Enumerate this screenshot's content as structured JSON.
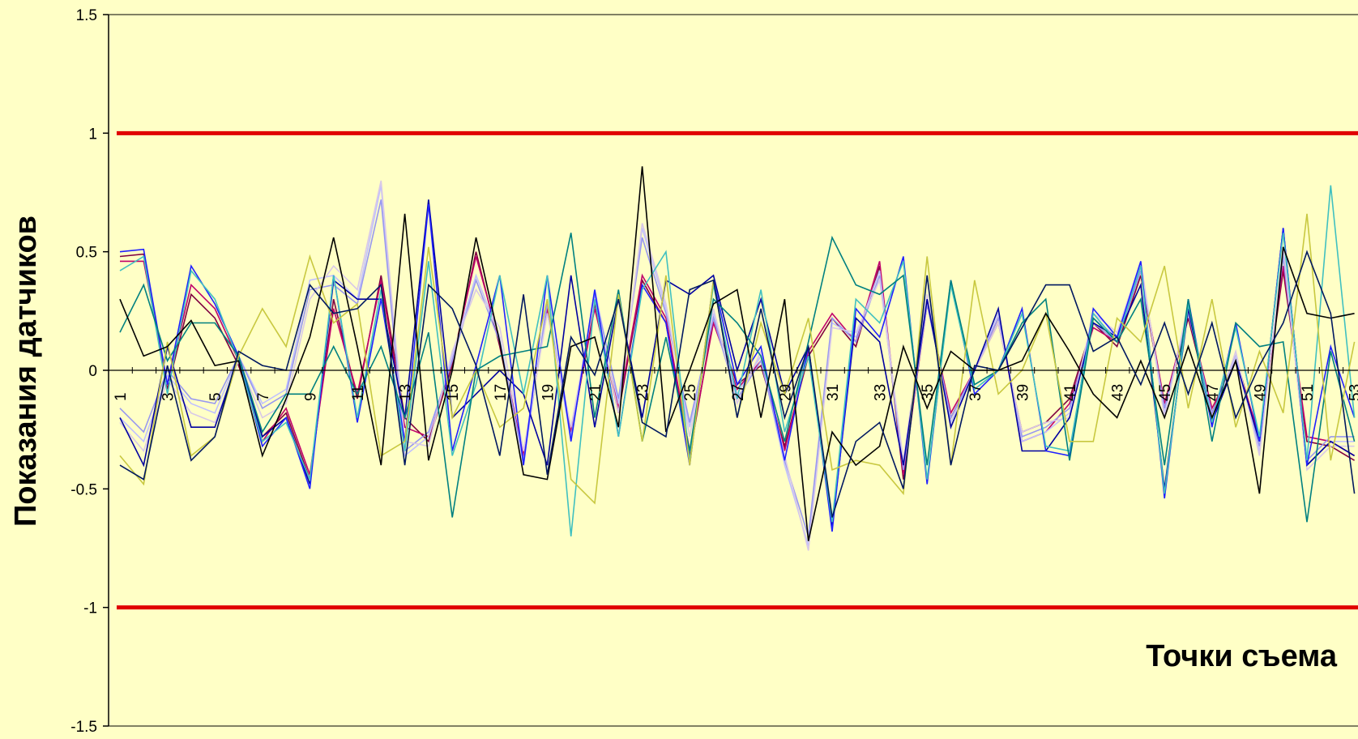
{
  "chart_data": {
    "type": "line",
    "title": "",
    "xlabel": "Точки съема",
    "ylabel": "Показания  датчиков",
    "ylim": [
      -1.5,
      1.5
    ],
    "yticks": [
      "1.5",
      "1",
      "0.5",
      "0",
      "-0.5",
      "-1",
      "-1.5"
    ],
    "xlim": [
      1,
      54
    ],
    "xticks": [
      "1",
      "3",
      "5",
      "7",
      "9",
      "11",
      "13",
      "15",
      "17",
      "19",
      "21",
      "23",
      "25",
      "27",
      "29",
      "31",
      "33",
      "35",
      "37",
      "39",
      "41",
      "43",
      "45",
      "47",
      "49",
      "51",
      "53"
    ],
    "legend": "none",
    "grid": false,
    "reference_lines": [
      {
        "y": 1,
        "color": "#e00000"
      },
      {
        "y": -1,
        "color": "#e00000"
      }
    ],
    "series": [
      {
        "color": "#800040",
        "values": [
          0.48,
          0.49,
          -0.08,
          0.32,
          0.22,
          0.02,
          -0.28,
          -0.18,
          -0.46,
          0.3,
          -0.12,
          0.4,
          -0.2,
          -0.3,
          0.02,
          0.5,
          0.1,
          -0.38,
          0.28,
          -0.28,
          0.28,
          -0.18,
          0.38,
          0.2,
          -0.36,
          0.22,
          -0.06,
          0.02,
          -0.32,
          0.06,
          0.22,
          0.1,
          0.44,
          -0.46,
          0.3,
          -0.2,
          0.0,
          0.2,
          -0.26,
          -0.22,
          -0.12,
          0.2,
          0.1,
          0.4,
          -0.16,
          0.22,
          -0.18,
          0.06,
          -0.3,
          0.42,
          -0.3,
          -0.32,
          -0.38
        ]
      },
      {
        "color": "#c0006a",
        "values": [
          0.46,
          0.46,
          -0.06,
          0.36,
          0.26,
          0.04,
          -0.3,
          -0.16,
          -0.44,
          0.26,
          -0.1,
          0.38,
          -0.24,
          -0.28,
          0.04,
          0.48,
          0.12,
          -0.36,
          0.26,
          -0.26,
          0.26,
          -0.16,
          0.4,
          0.22,
          -0.34,
          0.2,
          -0.08,
          0.04,
          -0.34,
          0.08,
          0.24,
          0.12,
          0.46,
          -0.44,
          0.28,
          -0.18,
          0.0,
          0.22,
          -0.3,
          -0.26,
          -0.14,
          0.18,
          0.12,
          0.42,
          -0.14,
          0.24,
          -0.16,
          0.04,
          -0.28,
          0.44,
          -0.28,
          -0.3,
          -0.36
        ]
      },
      {
        "color": "#c0c0ff",
        "values": [
          -0.2,
          -0.3,
          -0.02,
          -0.14,
          -0.18,
          0.06,
          -0.14,
          -0.08,
          0.38,
          0.4,
          0.3,
          0.78,
          -0.36,
          -0.28,
          0.06,
          0.4,
          0.14,
          -0.4,
          0.3,
          -0.3,
          0.34,
          -0.14,
          0.6,
          0.26,
          -0.24,
          0.24,
          -0.1,
          0.06,
          -0.4,
          -0.74,
          0.2,
          0.14,
          0.42,
          -0.4,
          0.3,
          -0.22,
          0.0,
          0.24,
          -0.3,
          -0.26,
          -0.18,
          0.22,
          0.14,
          0.44,
          -0.18,
          0.26,
          -0.2,
          0.06,
          -0.34,
          0.5,
          -0.4,
          -0.3,
          -0.3
        ]
      },
      {
        "color": "#9898f0",
        "values": [
          -0.16,
          -0.26,
          0.0,
          -0.12,
          -0.14,
          0.06,
          -0.16,
          -0.1,
          0.34,
          0.36,
          0.28,
          0.72,
          -0.34,
          -0.26,
          0.04,
          0.38,
          0.12,
          -0.38,
          0.28,
          -0.28,
          0.32,
          -0.12,
          0.56,
          0.24,
          -0.22,
          0.22,
          -0.12,
          0.04,
          -0.38,
          -0.7,
          0.22,
          0.12,
          0.4,
          -0.42,
          0.28,
          -0.2,
          0.0,
          0.22,
          -0.28,
          -0.24,
          -0.16,
          0.2,
          0.12,
          0.42,
          -0.16,
          0.24,
          -0.18,
          0.04,
          -0.32,
          0.48,
          -0.38,
          -0.28,
          -0.28
        ]
      },
      {
        "color": "#d8c8e8",
        "values": [
          -0.22,
          -0.34,
          -0.04,
          -0.18,
          -0.22,
          0.04,
          -0.2,
          -0.14,
          0.3,
          0.44,
          0.34,
          0.8,
          -0.3,
          -0.32,
          0.08,
          0.34,
          0.18,
          -0.34,
          0.24,
          -0.24,
          0.3,
          -0.18,
          0.62,
          0.28,
          -0.28,
          0.26,
          -0.14,
          0.08,
          -0.36,
          -0.76,
          0.18,
          0.16,
          0.38,
          -0.38,
          0.32,
          -0.24,
          0.0,
          0.2,
          -0.26,
          -0.22,
          -0.2,
          0.24,
          0.16,
          0.46,
          -0.2,
          0.28,
          -0.22,
          0.08,
          -0.36,
          0.52,
          -0.42,
          -0.32,
          -0.32
        ]
      },
      {
        "color": "#0000a0",
        "values": [
          -0.2,
          -0.4,
          0.1,
          -0.24,
          -0.24,
          0.06,
          -0.28,
          -0.2,
          -0.48,
          0.38,
          0.3,
          0.3,
          -0.2,
          0.72,
          -0.2,
          -0.1,
          0.0,
          -0.1,
          -0.4,
          0.4,
          -0.24,
          0.3,
          -0.2,
          0.38,
          0.32,
          0.4,
          0.0,
          0.3,
          -0.1,
          0.1,
          -0.66,
          0.22,
          0.12,
          -0.4,
          0.3,
          -0.24,
          0.0,
          0.26,
          -0.34,
          -0.34,
          -0.2,
          0.2,
          0.14,
          0.36,
          -0.5,
          0.26,
          -0.22,
          0.04,
          -0.3,
          0.6,
          -0.4,
          -0.3,
          -0.36
        ]
      },
      {
        "color": "#2020ff",
        "values": [
          0.5,
          0.51,
          -0.06,
          0.44,
          0.28,
          0.06,
          -0.32,
          -0.2,
          -0.5,
          0.4,
          -0.22,
          0.3,
          -0.3,
          0.7,
          -0.34,
          0.02,
          0.4,
          -0.4,
          0.4,
          -0.3,
          0.34,
          -0.28,
          0.36,
          0.2,
          -0.4,
          0.38,
          -0.06,
          0.1,
          -0.38,
          0.1,
          -0.68,
          0.26,
          0.14,
          0.48,
          -0.48,
          0.38,
          -0.1,
          0.0,
          0.26,
          -0.34,
          -0.36,
          0.26,
          0.14,
          0.46,
          -0.54,
          0.3,
          -0.24,
          0.2,
          -0.3,
          0.6,
          -0.4,
          0.1,
          -0.2
        ]
      },
      {
        "color": "#40c0c0",
        "values": [
          0.42,
          0.48,
          -0.1,
          0.42,
          0.3,
          0.04,
          -0.3,
          -0.22,
          -0.46,
          0.4,
          -0.2,
          0.34,
          -0.34,
          0.46,
          -0.36,
          -0.06,
          0.4,
          -0.1,
          0.4,
          -0.7,
          0.3,
          -0.28,
          0.34,
          0.5,
          -0.38,
          0.36,
          -0.12,
          0.34,
          -0.26,
          0.06,
          -0.64,
          0.3,
          0.2,
          0.46,
          -0.46,
          0.36,
          -0.08,
          0.0,
          0.24,
          -0.32,
          -0.34,
          0.24,
          0.12,
          0.44,
          -0.52,
          0.28,
          -0.22,
          0.18,
          -0.28,
          0.58,
          -0.38,
          0.78,
          -0.2
        ]
      },
      {
        "color": "#008080",
        "values": [
          0.16,
          0.36,
          0.04,
          0.2,
          0.2,
          0.06,
          -0.26,
          -0.1,
          -0.1,
          0.1,
          -0.1,
          0.1,
          -0.2,
          0.16,
          -0.62,
          0.0,
          0.06,
          0.08,
          0.1,
          0.58,
          -0.2,
          0.34,
          -0.3,
          0.14,
          -0.34,
          0.3,
          0.2,
          0.06,
          -0.3,
          0.12,
          0.56,
          0.36,
          0.32,
          0.4,
          -0.4,
          0.38,
          -0.06,
          0.0,
          0.2,
          0.3,
          -0.38,
          0.22,
          0.12,
          0.3,
          -0.4,
          0.3,
          -0.3,
          0.2,
          0.1,
          0.12,
          -0.64,
          0.08,
          -0.3
        ]
      },
      {
        "color": "#c8c840",
        "values": [
          -0.36,
          -0.48,
          0.12,
          -0.36,
          -0.28,
          0.06,
          0.26,
          0.1,
          0.48,
          0.2,
          0.28,
          -0.36,
          -0.3,
          0.52,
          -0.2,
          0.0,
          -0.24,
          -0.16,
          0.3,
          -0.46,
          -0.56,
          0.32,
          -0.3,
          0.4,
          -0.4,
          0.38,
          -0.2,
          0.2,
          -0.1,
          0.22,
          -0.42,
          -0.38,
          -0.4,
          -0.52,
          0.48,
          -0.4,
          0.38,
          -0.1,
          0.0,
          0.24,
          -0.3,
          -0.3,
          0.22,
          0.12,
          0.44,
          -0.16,
          0.3,
          -0.24,
          0.08,
          -0.18,
          0.66,
          -0.38,
          0.12
        ]
      },
      {
        "color": "#000000",
        "values": [
          0.3,
          0.06,
          0.1,
          0.21,
          0.02,
          0.04,
          -0.36,
          -0.12,
          0.14,
          0.56,
          0.1,
          -0.4,
          0.66,
          -0.38,
          0.0,
          0.56,
          0.12,
          -0.44,
          -0.46,
          0.1,
          0.14,
          -0.24,
          0.86,
          -0.26,
          0.0,
          0.28,
          0.34,
          -0.2,
          0.3,
          -0.72,
          -0.26,
          -0.4,
          -0.32,
          0.1,
          -0.16,
          0.08,
          0.0,
          0.0,
          0.04,
          0.24,
          0.08,
          -0.1,
          -0.2,
          0.04,
          -0.2,
          0.1,
          -0.2,
          0.04,
          -0.52,
          0.52,
          0.24,
          0.22,
          0.24
        ]
      },
      {
        "color": "#001860",
        "values": [
          -0.4,
          -0.46,
          0.02,
          -0.38,
          -0.28,
          0.08,
          0.02,
          0.0,
          0.36,
          0.24,
          0.26,
          0.36,
          -0.4,
          0.36,
          0.26,
          0.02,
          -0.36,
          0.32,
          -0.44,
          0.14,
          -0.02,
          0.3,
          -0.22,
          -0.28,
          0.34,
          0.38,
          -0.2,
          0.26,
          -0.2,
          0.1,
          -0.62,
          -0.3,
          -0.22,
          -0.5,
          0.4,
          -0.4,
          0.02,
          0.0,
          0.18,
          0.36,
          0.36,
          0.08,
          0.14,
          -0.06,
          0.2,
          -0.1,
          0.2,
          -0.2,
          0.02,
          0.2,
          0.5,
          0.24,
          -0.52
        ]
      }
    ]
  }
}
